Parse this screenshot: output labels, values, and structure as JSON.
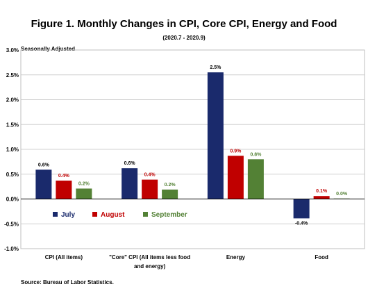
{
  "chart_data": {
    "type": "bar",
    "title": "Figure 1. Monthly Changes in CPI, Core CPI, Energy and Food",
    "subtitle": "(2020.7 - 2020.9)",
    "ylabel": "Seasonally Adjusted",
    "source": "Source: Bureau of Labor Statistics.",
    "ylim": [
      -1.0,
      3.0
    ],
    "yticks": [
      -1.0,
      -0.5,
      0.0,
      0.5,
      1.0,
      1.5,
      2.0,
      2.5,
      3.0
    ],
    "ytick_labels": [
      "-1.0%",
      "-0.5%",
      "0.0%",
      "0.5%",
      "1.0%",
      "1.5%",
      "2.0%",
      "2.5%",
      "3.0%"
    ],
    "categories": [
      "CPI (All items)",
      "\"Core\" CPI (All items less food and energy)",
      "Energy",
      "Food"
    ],
    "category_lines": [
      [
        "CPI (All items)"
      ],
      [
        "\"Core\" CPI (All items less food",
        "and energy)"
      ],
      [
        "Energy"
      ],
      [
        "Food"
      ]
    ],
    "series": [
      {
        "name": "July",
        "color": "#1a2a6c",
        "values": [
          0.59,
          0.62,
          2.55,
          -0.39
        ],
        "labels": [
          "0.6%",
          "0.6%",
          "2.5%",
          "-0.4%"
        ]
      },
      {
        "name": "August",
        "color": "#c00000",
        "values": [
          0.37,
          0.39,
          0.87,
          0.06
        ],
        "labels": [
          "0.4%",
          "0.4%",
          "0.9%",
          "0.1%"
        ]
      },
      {
        "name": "September",
        "color": "#538135",
        "values": [
          0.21,
          0.19,
          0.8,
          0.01
        ],
        "labels": [
          "0.2%",
          "0.2%",
          "0.8%",
          "0.0%"
        ]
      }
    ],
    "grid": true,
    "legend": "lower-left inside plot"
  }
}
